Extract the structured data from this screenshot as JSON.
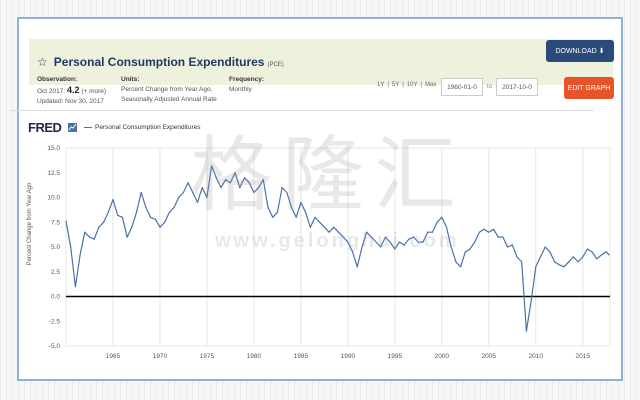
{
  "header": {
    "title": "Personal Consumption Expenditures",
    "abbreviation": "(PCE)",
    "download_label": "DOWNLOAD",
    "edit_label": "EDIT GRAPH"
  },
  "observation": {
    "label": "Observation:",
    "date": "Oct 2017:",
    "value": "4.2",
    "more": "(+ more)",
    "updated": "Updated: Nov 30, 2017"
  },
  "units": {
    "label": "Units:",
    "line1": "Percent Change from Year Ago,",
    "line2": "Seasonally Adjusted Annual Rate"
  },
  "frequency": {
    "label": "Frequency:",
    "value": "Monthly"
  },
  "ranges": [
    "1Y",
    "|",
    "5Y",
    "|",
    "10Y",
    "|",
    "Max"
  ],
  "date_range": {
    "start": "1960-01-0",
    "to_label": "to",
    "end": "2017-10-0"
  },
  "brand": {
    "logo": "FRED",
    "watermark": "格隆汇",
    "watermark_url": "www.gelonghui.com"
  },
  "colors": {
    "line": "#4a72a8",
    "zero_line": "#000000",
    "download": "#2a4a7c",
    "edit": "#e8542a",
    "header_bg": "#eef2dd"
  },
  "chart_data": {
    "type": "line",
    "title": "Personal Consumption Expenditures",
    "xlabel": "",
    "ylabel": "Percent Change from Year Ago",
    "xlim": [
      1960,
      2017.9
    ],
    "ylim": [
      -5.0,
      15.0
    ],
    "yticks": [
      15.0,
      12.5,
      10.0,
      7.5,
      5.0,
      2.5,
      0.0,
      -2.5,
      -5.0
    ],
    "xticks": [
      1965,
      1970,
      1975,
      1980,
      1985,
      1990,
      1995,
      2000,
      2005,
      2010,
      2015
    ],
    "grid": "vertical",
    "legend": "top-left",
    "series": [
      {
        "name": "Personal Consumption Expenditures",
        "x": [
          1960.0,
          1960.5,
          1961.0,
          1961.5,
          1962.0,
          1962.5,
          1963.0,
          1963.5,
          1964.0,
          1964.5,
          1965.0,
          1965.5,
          1966.0,
          1966.5,
          1967.0,
          1967.5,
          1968.0,
          1968.5,
          1969.0,
          1969.5,
          1970.0,
          1970.5,
          1971.0,
          1971.5,
          1972.0,
          1972.5,
          1973.0,
          1973.5,
          1974.0,
          1974.5,
          1975.0,
          1975.5,
          1976.0,
          1976.5,
          1977.0,
          1977.5,
          1978.0,
          1978.5,
          1979.0,
          1979.5,
          1980.0,
          1980.5,
          1981.0,
          1981.5,
          1982.0,
          1982.5,
          1983.0,
          1983.5,
          1984.0,
          1984.5,
          1985.0,
          1985.5,
          1986.0,
          1986.5,
          1987.0,
          1987.5,
          1988.0,
          1988.5,
          1989.0,
          1989.5,
          1990.0,
          1990.5,
          1991.0,
          1991.5,
          1992.0,
          1992.5,
          1993.0,
          1993.5,
          1994.0,
          1994.5,
          1995.0,
          1995.5,
          1996.0,
          1996.5,
          1997.0,
          1997.5,
          1998.0,
          1998.5,
          1999.0,
          1999.5,
          2000.0,
          2000.5,
          2001.0,
          2001.5,
          2002.0,
          2002.5,
          2003.0,
          2003.5,
          2004.0,
          2004.5,
          2005.0,
          2005.5,
          2006.0,
          2006.5,
          2007.0,
          2007.5,
          2008.0,
          2008.5,
          2009.0,
          2009.5,
          2010.0,
          2010.5,
          2011.0,
          2011.5,
          2012.0,
          2012.5,
          2013.0,
          2013.5,
          2014.0,
          2014.5,
          2015.0,
          2015.5,
          2016.0,
          2016.5,
          2017.0,
          2017.5,
          2017.8
        ],
        "values": [
          7.6,
          5.0,
          1.0,
          4.2,
          6.5,
          6.0,
          5.8,
          7.0,
          7.5,
          8.5,
          9.8,
          8.2,
          8.0,
          6.0,
          7.0,
          8.5,
          10.5,
          9.0,
          8.0,
          7.8,
          7.0,
          7.5,
          8.5,
          9.0,
          10.0,
          10.5,
          11.5,
          10.5,
          9.5,
          11.0,
          10.0,
          13.2,
          12.0,
          11.0,
          11.8,
          11.5,
          12.5,
          11.0,
          12.0,
          11.5,
          10.5,
          11.0,
          11.8,
          9.0,
          8.0,
          8.5,
          11.0,
          10.5,
          9.0,
          8.0,
          9.5,
          8.5,
          7.0,
          8.0,
          7.5,
          7.0,
          6.5,
          7.0,
          6.5,
          6.0,
          5.5,
          4.5,
          3.0,
          5.0,
          6.5,
          6.0,
          5.5,
          5.0,
          6.0,
          5.5,
          4.8,
          5.5,
          5.2,
          5.8,
          6.0,
          5.5,
          5.5,
          6.5,
          6.5,
          7.5,
          8.0,
          7.0,
          5.0,
          3.5,
          3.0,
          4.5,
          4.8,
          5.5,
          6.5,
          6.8,
          6.5,
          6.8,
          6.0,
          6.0,
          5.0,
          5.2,
          4.0,
          3.5,
          -3.5,
          -0.5,
          3.0,
          4.0,
          5.0,
          4.5,
          3.5,
          3.2,
          3.0,
          3.5,
          4.0,
          3.5,
          4.0,
          4.8,
          4.5,
          3.8,
          4.2,
          4.5,
          4.2
        ]
      }
    ]
  }
}
